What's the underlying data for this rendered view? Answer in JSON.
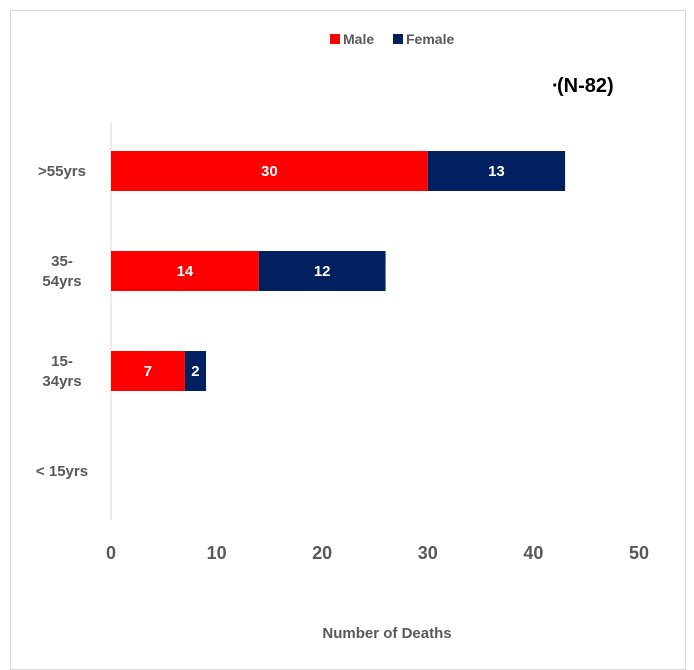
{
  "chart_data": {
    "type": "bar",
    "orientation": "horizontal",
    "stacked": true,
    "categories": [
      "< 15yrs",
      "15-34yrs",
      "35-54yrs",
      ">55yrs"
    ],
    "category_lines": [
      [
        "< 15yrs"
      ],
      [
        "15-",
        "34yrs"
      ],
      [
        "35-",
        "54yrs"
      ],
      [
        ">55yrs"
      ]
    ],
    "series": [
      {
        "name": "Male",
        "color": "#ff0000",
        "values": [
          0,
          7,
          14,
          30
        ]
      },
      {
        "name": "Female",
        "color": "#002060",
        "values": [
          0,
          2,
          12,
          13
        ]
      }
    ],
    "data_labels": [
      [
        "",
        "7",
        "14",
        "30"
      ],
      [
        "",
        "2",
        "12",
        "13"
      ]
    ],
    "xlabel": "Number of Deaths",
    "ylabel": "",
    "xlim": [
      0,
      50
    ],
    "xticks": [
      "0",
      "10",
      "20",
      "30",
      "40",
      "50"
    ],
    "annotation": "(N-82)",
    "annotation_prefix": "·",
    "legend_position": "top",
    "grid": false
  }
}
